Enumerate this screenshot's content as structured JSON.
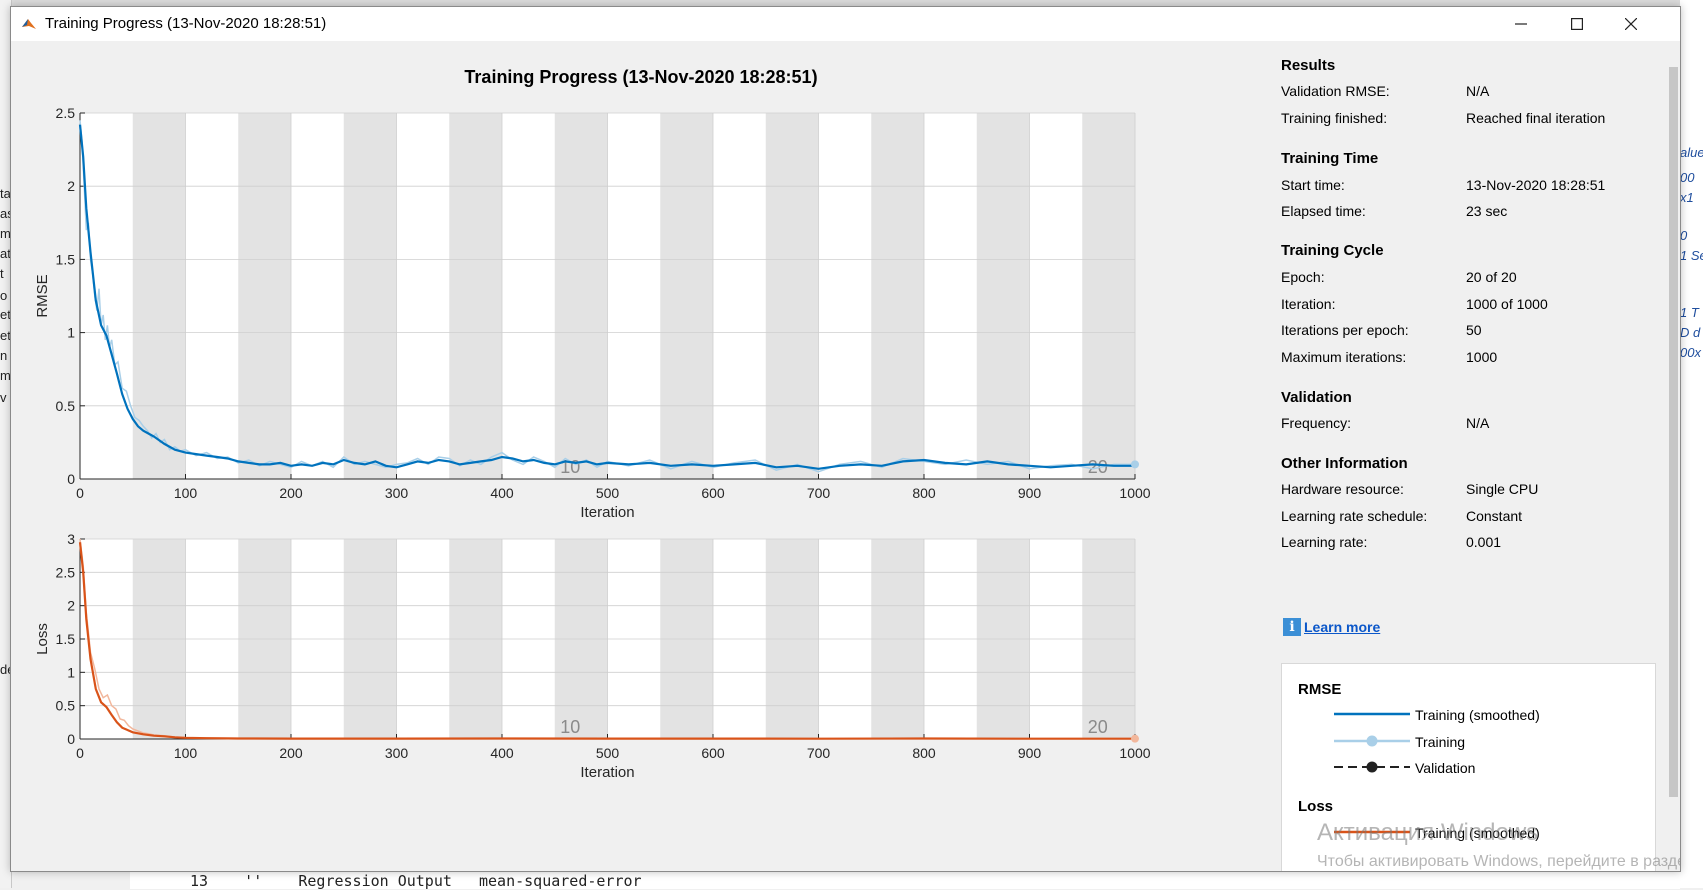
{
  "window": {
    "title": "Training Progress (13-Nov-2020 18:28:51)",
    "minimize_icon": "minimize-icon",
    "maximize_icon": "maximize-icon",
    "close_icon": "close-icon"
  },
  "chart_title": "Training Progress (13-Nov-2020 18:28:51)",
  "background": {
    "left_fragments": [
      "ta",
      "as",
      "m",
      "at",
      "t",
      "o",
      "et",
      "et",
      "n",
      "m",
      "v",
      "de"
    ],
    "right_fragments": [
      "alue",
      "00",
      "x1",
      "0",
      "1 Se",
      "1 T",
      "D d",
      "00x"
    ],
    "bottom_code": "13    ''    Regression Output   mean-squared-error"
  },
  "results": {
    "title": "Results",
    "rows": [
      {
        "label": "Validation RMSE:",
        "value": "N/A"
      },
      {
        "label": "Training finished:",
        "value": "Reached final iteration"
      }
    ]
  },
  "training_time": {
    "title": "Training Time",
    "rows": [
      {
        "label": "Start time:",
        "value": "13-Nov-2020 18:28:51"
      },
      {
        "label": "Elapsed time:",
        "value": "23 sec"
      }
    ]
  },
  "training_cycle": {
    "title": "Training Cycle",
    "rows": [
      {
        "label": "Epoch:",
        "value": "20 of 20"
      },
      {
        "label": "Iteration:",
        "value": "1000 of 1000"
      },
      {
        "label": "Iterations per epoch:",
        "value": "50"
      },
      {
        "label": "Maximum iterations:",
        "value": "1000"
      }
    ]
  },
  "validation": {
    "title": "Validation",
    "rows": [
      {
        "label": "Frequency:",
        "value": "N/A"
      }
    ]
  },
  "other_info": {
    "title": "Other Information",
    "rows": [
      {
        "label": "Hardware resource:",
        "value": "Single CPU"
      },
      {
        "label": "Learning rate schedule:",
        "value": "Constant"
      },
      {
        "label": "Learning rate:",
        "value": "0.001"
      }
    ]
  },
  "learn_more": "Learn more",
  "legend": {
    "rmse_title": "RMSE",
    "loss_title": "Loss",
    "items": [
      "Training (smoothed)",
      "Training",
      "Validation"
    ],
    "loss_items": [
      "Training (smoothed)"
    ]
  },
  "watermark": {
    "line1": "Активация Windows",
    "line2": "Чтобы активировать Windows, перейдите в раздел \"Параметры\"."
  },
  "colors": {
    "rmse_smoothed": "#0072bd",
    "rmse_raw": "#a9cfe8",
    "loss_smoothed": "#d95319",
    "loss_raw": "#f2b79c",
    "epoch_band": "#e3e3e3"
  },
  "chart_data": [
    {
      "type": "line",
      "ylabel": "RMSE",
      "xlabel": "Iteration",
      "xlim": [
        0,
        1000
      ],
      "ylim": [
        0,
        2.5
      ],
      "xticks": [
        0,
        100,
        200,
        300,
        400,
        500,
        600,
        700,
        800,
        900,
        1000
      ],
      "yticks": [
        0,
        0.5,
        1,
        1.5,
        2,
        2.5
      ],
      "ytick_labels": [
        "0",
        "0.5",
        "1",
        "1.5",
        "2",
        "2.5"
      ],
      "epoch_labels": [
        {
          "x": 460,
          "label": "10"
        },
        {
          "x": 960,
          "label": "20"
        }
      ],
      "series": [
        {
          "name": "Training (smoothed)",
          "x": [
            0,
            3,
            6,
            10,
            15,
            20,
            25,
            30,
            35,
            40,
            45,
            50,
            55,
            60,
            65,
            70,
            80,
            90,
            100,
            110,
            120,
            130,
            140,
            150,
            160,
            170,
            180,
            190,
            200,
            210,
            220,
            230,
            240,
            250,
            260,
            270,
            280,
            290,
            300,
            310,
            320,
            330,
            340,
            350,
            360,
            370,
            380,
            390,
            400,
            410,
            420,
            430,
            440,
            450,
            460,
            470,
            480,
            490,
            500,
            520,
            540,
            560,
            580,
            600,
            620,
            640,
            660,
            680,
            700,
            720,
            740,
            760,
            780,
            800,
            820,
            840,
            860,
            880,
            900,
            920,
            940,
            960,
            980,
            1000
          ],
          "values": [
            2.42,
            2.2,
            1.85,
            1.55,
            1.22,
            1.05,
            0.98,
            0.85,
            0.72,
            0.58,
            0.48,
            0.41,
            0.36,
            0.33,
            0.31,
            0.29,
            0.24,
            0.2,
            0.18,
            0.17,
            0.16,
            0.15,
            0.14,
            0.12,
            0.11,
            0.1,
            0.1,
            0.11,
            0.09,
            0.1,
            0.09,
            0.11,
            0.1,
            0.13,
            0.11,
            0.1,
            0.12,
            0.09,
            0.08,
            0.1,
            0.12,
            0.11,
            0.13,
            0.12,
            0.1,
            0.11,
            0.12,
            0.13,
            0.15,
            0.14,
            0.12,
            0.13,
            0.11,
            0.1,
            0.12,
            0.11,
            0.12,
            0.1,
            0.11,
            0.1,
            0.11,
            0.09,
            0.1,
            0.09,
            0.1,
            0.11,
            0.08,
            0.09,
            0.07,
            0.09,
            0.1,
            0.09,
            0.12,
            0.13,
            0.11,
            0.1,
            0.12,
            0.1,
            0.09,
            0.08,
            0.09,
            0.1,
            0.09,
            0.09
          ]
        },
        {
          "name": "Training",
          "x": [
            0,
            2,
            4,
            6,
            8,
            10,
            12,
            14,
            16,
            18,
            20,
            22,
            24,
            26,
            28,
            30,
            33,
            36,
            40,
            44,
            48,
            52,
            56,
            60,
            64,
            68,
            72,
            76,
            80,
            85,
            90,
            95,
            100,
            110,
            120,
            130,
            140,
            150,
            160,
            170,
            180,
            190,
            200,
            210,
            220,
            230,
            240,
            250,
            260,
            270,
            280,
            290,
            300,
            310,
            320,
            330,
            340,
            350,
            360,
            370,
            380,
            390,
            400,
            410,
            420,
            430,
            440,
            450,
            460,
            470,
            480,
            490,
            500,
            520,
            540,
            560,
            580,
            600,
            620,
            640,
            660,
            680,
            700,
            720,
            740,
            760,
            780,
            800,
            820,
            840,
            860,
            880,
            900,
            920,
            940,
            960,
            980,
            1000
          ],
          "values": [
            2.45,
            2.3,
            2.0,
            1.7,
            1.75,
            1.5,
            1.4,
            1.25,
            1.15,
            1.3,
            1.05,
            1.12,
            0.95,
            1.05,
            0.9,
            0.95,
            0.78,
            0.8,
            0.62,
            0.6,
            0.5,
            0.42,
            0.4,
            0.36,
            0.33,
            0.28,
            0.31,
            0.25,
            0.27,
            0.2,
            0.22,
            0.19,
            0.2,
            0.16,
            0.18,
            0.14,
            0.15,
            0.11,
            0.13,
            0.09,
            0.12,
            0.1,
            0.08,
            0.12,
            0.09,
            0.12,
            0.08,
            0.15,
            0.1,
            0.12,
            0.1,
            0.08,
            0.1,
            0.11,
            0.14,
            0.1,
            0.15,
            0.14,
            0.09,
            0.13,
            0.1,
            0.15,
            0.18,
            0.13,
            0.1,
            0.15,
            0.12,
            0.08,
            0.14,
            0.1,
            0.13,
            0.08,
            0.12,
            0.09,
            0.13,
            0.07,
            0.12,
            0.08,
            0.11,
            0.13,
            0.06,
            0.1,
            0.05,
            0.1,
            0.12,
            0.08,
            0.14,
            0.12,
            0.1,
            0.13,
            0.1,
            0.12,
            0.07,
            0.09,
            0.1,
            0.07,
            0.1,
            0.1
          ]
        }
      ]
    },
    {
      "type": "line",
      "ylabel": "Loss",
      "xlabel": "Iteration",
      "xlim": [
        0,
        1000
      ],
      "ylim": [
        0,
        3
      ],
      "xticks": [
        0,
        100,
        200,
        300,
        400,
        500,
        600,
        700,
        800,
        900,
        1000
      ],
      "yticks": [
        0,
        0.5,
        1,
        1.5,
        2,
        2.5,
        3
      ],
      "ytick_labels": [
        "0",
        "0.5",
        "1",
        "1.5",
        "2",
        "2.5",
        "3"
      ],
      "epoch_labels": [
        {
          "x": 460,
          "label": "10"
        },
        {
          "x": 960,
          "label": "20"
        }
      ],
      "series": [
        {
          "name": "Training (smoothed)",
          "x": [
            0,
            3,
            6,
            10,
            15,
            20,
            25,
            30,
            35,
            40,
            50,
            60,
            70,
            80,
            90,
            100,
            120,
            150,
            200,
            300,
            400,
            500,
            600,
            700,
            800,
            900,
            1000
          ],
          "values": [
            2.95,
            2.5,
            1.8,
            1.2,
            0.75,
            0.55,
            0.48,
            0.36,
            0.25,
            0.17,
            0.1,
            0.07,
            0.05,
            0.04,
            0.025,
            0.018,
            0.012,
            0.008,
            0.006,
            0.006,
            0.008,
            0.006,
            0.006,
            0.004,
            0.007,
            0.005,
            0.005
          ]
        },
        {
          "name": "Training",
          "x": [
            0,
            3,
            6,
            10,
            14,
            18,
            22,
            26,
            30,
            34,
            38,
            42,
            46,
            50,
            55,
            60,
            65,
            70,
            80,
            90,
            100,
            120,
            150,
            200,
            300,
            400,
            500,
            600,
            700,
            800,
            900,
            1000
          ],
          "values": [
            3.0,
            2.6,
            1.9,
            1.3,
            1.05,
            0.75,
            0.62,
            0.66,
            0.5,
            0.45,
            0.3,
            0.28,
            0.2,
            0.15,
            0.12,
            0.09,
            0.08,
            0.06,
            0.05,
            0.03,
            0.02,
            0.015,
            0.01,
            0.007,
            0.007,
            0.01,
            0.007,
            0.007,
            0.004,
            0.008,
            0.005,
            0.005
          ]
        }
      ]
    }
  ]
}
